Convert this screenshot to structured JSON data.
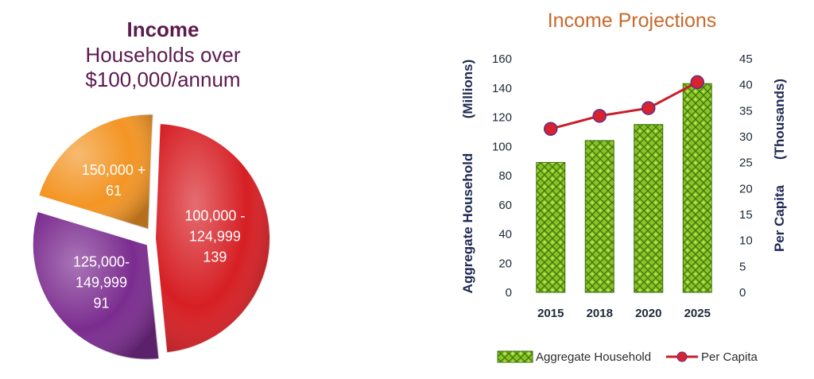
{
  "colors": {
    "pie_100k": "#d61f24",
    "pie_125k": "#7b2c8f",
    "pie_150k": "#f39524",
    "bar_fill": "#7fbf1f",
    "bar_stroke": "#3f6e0f",
    "line": "#c81e2a",
    "marker": "#d8232f",
    "marker_ring": "#5a2f8a",
    "axis_text": "#1e2a52"
  },
  "chart_data": [
    {
      "type": "pie",
      "title": "Income",
      "subtitle": "Households over $100,000/annum",
      "subtitle_lines": [
        "Households over",
        "$100,000/annum"
      ],
      "slices": [
        {
          "label": "100,000 - 124,999",
          "label_lines": [
            "100,000 -",
            "124,999"
          ],
          "value": 139,
          "value_label": "139"
        },
        {
          "label": "125,000- 149,999",
          "label_lines": [
            "125,000-",
            "149,999"
          ],
          "value": 91,
          "value_label": "91"
        },
        {
          "label": "150,000 +",
          "label_lines": [
            "150,000 +"
          ],
          "value": 61,
          "value_label": "61"
        }
      ]
    },
    {
      "type": "bar",
      "title": "Income Projections",
      "categories": [
        "2015",
        "2018",
        "2020",
        "2025"
      ],
      "series": [
        {
          "name": "Aggregate Household",
          "type": "bar",
          "axis": "left",
          "values": [
            89,
            104,
            115,
            143
          ]
        },
        {
          "name": "Per Capita",
          "type": "line",
          "axis": "right",
          "values": [
            31.5,
            34,
            35.5,
            40.5
          ]
        }
      ],
      "y_left": {
        "label": "Aggregate Household",
        "unit": "(Millions)",
        "range": [
          0,
          160
        ],
        "ticks": [
          "0",
          "20",
          "40",
          "60",
          "80",
          "100",
          "120",
          "140",
          "160"
        ]
      },
      "y_right": {
        "label": "Per Capita",
        "unit": "(Thousands)",
        "range": [
          0,
          45
        ],
        "ticks": [
          "0",
          "5",
          "10",
          "15",
          "20",
          "25",
          "30",
          "35",
          "40",
          "45"
        ]
      },
      "grid": false,
      "legend_position": "bottom"
    }
  ]
}
